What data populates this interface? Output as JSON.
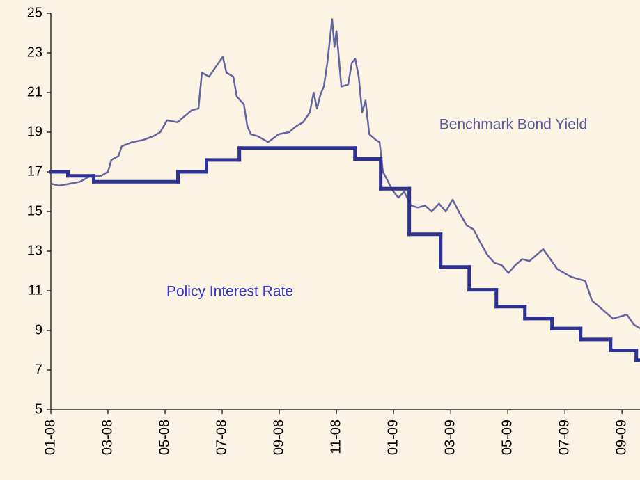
{
  "chart_data": {
    "type": "line",
    "xlim": [
      0,
      20.63
    ],
    "ylim": [
      5,
      25
    ],
    "yticks": [
      5,
      7,
      9,
      11,
      13,
      15,
      17,
      19,
      21,
      23,
      25
    ],
    "xticks": [
      {
        "value": 0,
        "label": "01-08"
      },
      {
        "value": 2,
        "label": "03-08"
      },
      {
        "value": 4,
        "label": "05-08"
      },
      {
        "value": 6,
        "label": "07-08"
      },
      {
        "value": 8,
        "label": "09-08"
      },
      {
        "value": 10,
        "label": "11-08"
      },
      {
        "value": 12,
        "label": "01-09"
      },
      {
        "value": 14,
        "label": "03-09"
      },
      {
        "value": 16,
        "label": "05-09"
      },
      {
        "value": 18,
        "label": "07-09"
      },
      {
        "value": 20,
        "label": "09-09"
      }
    ],
    "series": [
      {
        "name": "Benchmark Bond Yield",
        "color": "#6464a0",
        "step": false,
        "x": [
          0,
          0.29,
          0.66,
          1.02,
          1.39,
          1.76,
          2.0,
          2.12,
          2.37,
          2.49,
          2.85,
          3.22,
          3.59,
          3.83,
          4.07,
          4.44,
          4.68,
          4.93,
          5.17,
          5.29,
          5.54,
          5.78,
          6.02,
          6.15,
          6.39,
          6.51,
          6.76,
          6.88,
          7.0,
          7.24,
          7.61,
          7.98,
          8.34,
          8.59,
          8.83,
          9.07,
          9.2,
          9.32,
          9.44,
          9.56,
          9.68,
          9.85,
          9.93,
          10.0,
          10.1,
          10.17,
          10.41,
          10.54,
          10.66,
          10.78,
          10.9,
          11.02,
          11.15,
          11.39,
          11.51,
          11.63,
          11.88,
          12.0,
          12.17,
          12.37,
          12.61,
          12.85,
          13.1,
          13.34,
          13.59,
          13.83,
          14.07,
          14.32,
          14.56,
          14.8,
          15.05,
          15.29,
          15.54,
          15.78,
          16.02,
          16.27,
          16.51,
          16.76,
          17.0,
          17.24,
          17.49,
          17.73,
          17.98,
          18.22,
          18.46,
          18.71,
          18.95,
          19.2,
          19.44,
          19.68,
          19.93,
          20.17,
          20.41,
          20.63
        ],
        "values": [
          16.4,
          16.3,
          16.4,
          16.5,
          16.8,
          16.8,
          17.0,
          17.6,
          17.8,
          18.3,
          18.5,
          18.6,
          18.8,
          19.0,
          19.6,
          19.5,
          19.8,
          20.1,
          20.2,
          22.0,
          21.8,
          22.3,
          22.8,
          22.0,
          21.8,
          20.8,
          20.4,
          19.3,
          18.9,
          18.8,
          18.5,
          18.9,
          19.0,
          19.3,
          19.5,
          20.0,
          21.0,
          20.2,
          20.9,
          21.3,
          22.5,
          24.7,
          23.3,
          24.1,
          22.5,
          21.3,
          21.4,
          22.5,
          22.7,
          21.8,
          20.0,
          20.6,
          18.9,
          18.6,
          18.5,
          17.0,
          16.3,
          16.0,
          15.7,
          16.0,
          15.3,
          15.2,
          15.3,
          15.0,
          15.4,
          15.0,
          15.6,
          14.9,
          14.3,
          14.1,
          13.4,
          12.8,
          12.4,
          12.3,
          11.9,
          12.3,
          12.6,
          12.5,
          12.8,
          13.1,
          12.6,
          12.1,
          11.9,
          11.7,
          11.6,
          11.5,
          10.5,
          10.2,
          9.9,
          9.6,
          9.7,
          9.8,
          9.3,
          9.1
        ]
      },
      {
        "name": "Policy Interest Rate",
        "color": "#2e3192",
        "step": true,
        "x": [
          0,
          0.6,
          1.5,
          4.45,
          5.45,
          6.6,
          10.65,
          11.55,
          12.55,
          13.65,
          14.65,
          15.6,
          16.6,
          17.55,
          18.55,
          19.6,
          20.5
        ],
        "values": [
          17.0,
          16.8,
          16.5,
          17.0,
          17.6,
          18.2,
          17.65,
          16.15,
          13.85,
          12.2,
          11.05,
          10.2,
          9.6,
          9.1,
          8.55,
          8.0,
          7.5
        ]
      }
    ]
  }
}
